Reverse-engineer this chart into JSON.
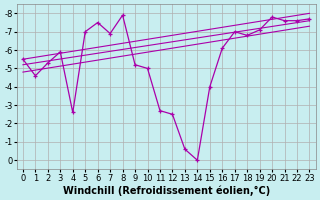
{
  "xlabel": "Windchill (Refroidissement éolien,°C)",
  "background_color": "#c8eef0",
  "grid_color": "#b0b0b0",
  "line_color": "#aa00aa",
  "xlim": [
    -0.5,
    23.5
  ],
  "ylim": [
    -8.5,
    0.5
  ],
  "yticks": [
    0,
    -1,
    -2,
    -3,
    -4,
    -5,
    -6,
    -7,
    -8
  ],
  "xticks": [
    0,
    1,
    2,
    3,
    4,
    5,
    6,
    7,
    8,
    9,
    10,
    11,
    12,
    13,
    14,
    15,
    16,
    17,
    18,
    19,
    20,
    21,
    22,
    23
  ],
  "main_x": [
    0,
    1,
    2,
    3,
    4,
    5,
    6,
    7,
    8,
    9,
    10,
    11,
    12,
    13,
    14,
    15,
    16,
    17,
    18,
    19,
    20,
    21,
    22,
    23
  ],
  "main_y": [
    -5.5,
    -4.6,
    -5.3,
    -5.9,
    -2.6,
    -7.0,
    -7.5,
    -6.9,
    -7.9,
    -5.2,
    -5.0,
    -2.7,
    -2.5,
    -0.6,
    0.0,
    -4.0,
    -6.1,
    -7.0,
    -6.8,
    -7.1,
    -7.8,
    -7.6,
    -7.6,
    -7.7
  ],
  "trend1_x": [
    0,
    23
  ],
  "trend1_y": [
    -4.8,
    -7.3
  ],
  "trend2_x": [
    0,
    23
  ],
  "trend2_y": [
    -5.2,
    -7.6
  ],
  "trend3_x": [
    0,
    23
  ],
  "trend3_y": [
    -5.5,
    -8.0
  ],
  "font_size_label": 7,
  "font_size_tick": 6
}
